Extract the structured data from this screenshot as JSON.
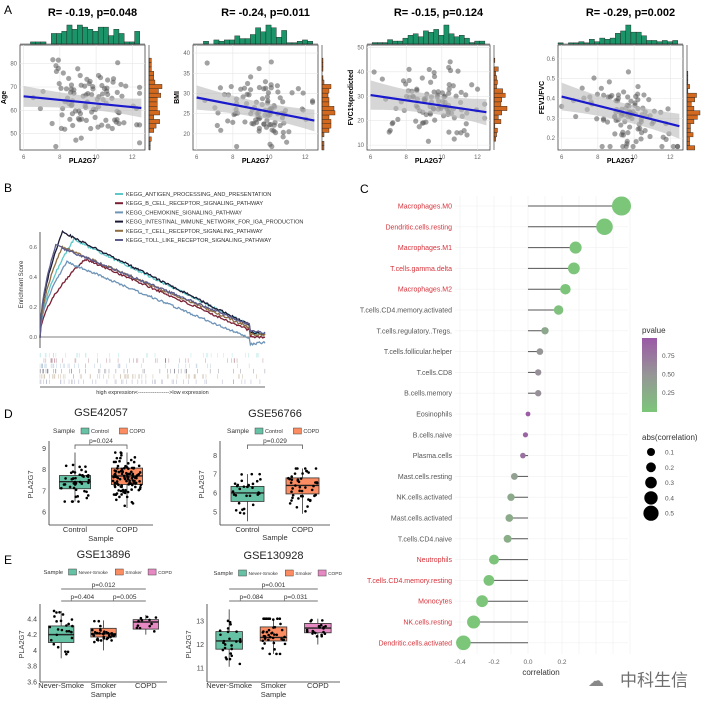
{
  "panel_labels": {
    "A": "A",
    "B": "B",
    "C": "C",
    "D": "D",
    "E": "E"
  },
  "watermark": "中科生信",
  "chart_data": [
    {
      "id": "A1",
      "type": "scatter",
      "title": "R= -0.19, p=0.048",
      "xlabel": "PLA2G7",
      "ylabel": "Age",
      "xticks": [
        6,
        8,
        10,
        12
      ],
      "yticks": [
        50,
        60,
        70,
        80
      ],
      "xlim": [
        5.8,
        12.7
      ],
      "ylim": [
        43,
        88
      ],
      "fit": [
        [
          6,
          66
        ],
        [
          12.5,
          61
        ]
      ],
      "ci_halfwidth": 4.5
    },
    {
      "id": "A2",
      "type": "scatter",
      "title": "R= -0.24, p=0.011",
      "xlabel": "PLA2G7",
      "ylabel": "BMI",
      "xticks": [
        6,
        8,
        10,
        12
      ],
      "yticks": [
        20,
        25,
        30,
        35,
        40
      ],
      "xlim": [
        5.8,
        12.7
      ],
      "ylim": [
        16,
        42
      ],
      "fit": [
        [
          6,
          29
        ],
        [
          12.5,
          23.3
        ]
      ],
      "ci_halfwidth": 3
    },
    {
      "id": "A3",
      "type": "scatter",
      "title": "R= -0.15, p=0.124",
      "xlabel": "PLA2G7",
      "ylabel": "FVC1%predicted",
      "xticks": [
        6,
        8,
        10,
        12
      ],
      "yticks": [
        10,
        20,
        30,
        40,
        50
      ],
      "xlim": [
        5.8,
        12.7
      ],
      "ylim": [
        8,
        51
      ],
      "fit": [
        [
          6,
          30.5
        ],
        [
          12.5,
          23.5
        ]
      ],
      "ci_halfwidth": 6
    },
    {
      "id": "A4",
      "type": "scatter",
      "title": "R= -0.29, p=0.002",
      "xlabel": "PLA2G7",
      "ylabel": "FEV1/FVC",
      "xticks": [
        6,
        8,
        10,
        12
      ],
      "yticks": [
        0.2,
        0.3,
        0.4,
        0.5,
        0.6
      ],
      "xlim": [
        5.8,
        12.7
      ],
      "ylim": [
        0.14,
        0.67
      ],
      "fit": [
        [
          6,
          0.41
        ],
        [
          12.5,
          0.26
        ]
      ],
      "ci_halfwidth": 0.07
    },
    {
      "id": "B",
      "type": "line",
      "ylabel": "Enrichment Score",
      "xlabel": "high expression<----------------->low expression",
      "yticks": [
        0.0,
        0.2,
        0.4,
        0.6
      ],
      "ylim": [
        -0.1,
        0.72
      ],
      "series": [
        {
          "name": "KEGG_ANTIGEN_PROCESSING_AND_PRESENTATION",
          "color": "#5fc9c9",
          "peak": 0.65,
          "peak_at": 0.15,
          "end": 0.03
        },
        {
          "name": "KEGG_B_CELL_RECEPTOR_SIGNALING_PATHWAY",
          "color": "#7a1f33",
          "peak": 0.52,
          "peak_at": 0.2,
          "end": 0.0
        },
        {
          "name": "KEGG_CHEMOKINE_SIGNALING_PATHWAY",
          "color": "#6e94b8",
          "peak": 0.5,
          "peak_at": 0.12,
          "end": -0.05
        },
        {
          "name": "KEGG_INTESTINAL_IMMUNE_NETWORK_FOR_IGA_PRODUCTION",
          "color": "#1b1a35",
          "peak": 0.7,
          "peak_at": 0.1,
          "end": 0.03
        },
        {
          "name": "KEGG_T_CELL_RECEPTOR_SIGNALING_PATHWAY",
          "color": "#8f6d42",
          "peak": 0.6,
          "peak_at": 0.1,
          "end": 0.02
        },
        {
          "name": "KEGG_TOLL_LIKE_RECEPTOR_SIGNALING_PATHWAY",
          "color": "#5c5c8c",
          "peak": 0.61,
          "peak_at": 0.07,
          "end": 0.04
        }
      ]
    },
    {
      "id": "C",
      "type": "scatter",
      "xlabel": "correlation",
      "xticks": [
        -0.4,
        -0.2,
        0.0,
        0.2
      ],
      "xlim": [
        -0.42,
        0.6
      ],
      "legend_pvalue_title": "pvalue",
      "legend_pvalue_ticks": [
        "0.75",
        "0.50",
        "0.25"
      ],
      "legend_size_title": "abs(correlation)",
      "legend_size_ticks": [
        "0.1",
        "0.2",
        "0.3",
        "0.4",
        "0.5"
      ],
      "highlight_color": "#d6333b",
      "rows": [
        {
          "label": "Macrophages.M0",
          "corr": 0.55,
          "p": 0.0,
          "sig": true
        },
        {
          "label": "Dendritic.cells.resting",
          "corr": 0.45,
          "p": 0.0,
          "sig": true
        },
        {
          "label": "Macrophages.M1",
          "corr": 0.28,
          "p": 0.01,
          "sig": true
        },
        {
          "label": "T.cells.gamma.delta",
          "corr": 0.27,
          "p": 0.01,
          "sig": true
        },
        {
          "label": "Macrophages.M2",
          "corr": 0.22,
          "p": 0.02,
          "sig": true
        },
        {
          "label": "T.cells.CD4.memory.activated",
          "corr": 0.18,
          "p": 0.05,
          "sig": false
        },
        {
          "label": "T.cells.regulatory..Tregs.",
          "corr": 0.1,
          "p": 0.32,
          "sig": false
        },
        {
          "label": "T.cells.follicular.helper",
          "corr": 0.07,
          "p": 0.5,
          "sig": false
        },
        {
          "label": "T.cells.CD8",
          "corr": 0.06,
          "p": 0.55,
          "sig": false
        },
        {
          "label": "B.cells.memory",
          "corr": 0.06,
          "p": 0.55,
          "sig": false
        },
        {
          "label": "Eosinophils",
          "corr": 0.0,
          "p": 0.98,
          "sig": false
        },
        {
          "label": "B.cells.naive",
          "corr": -0.015,
          "p": 0.9,
          "sig": false
        },
        {
          "label": "Plasma.cells",
          "corr": -0.03,
          "p": 0.8,
          "sig": false
        },
        {
          "label": "Mast.cells.resting",
          "corr": -0.08,
          "p": 0.4,
          "sig": false
        },
        {
          "label": "NK.cells.activated",
          "corr": -0.1,
          "p": 0.3,
          "sig": false
        },
        {
          "label": "Mast.cells.activated",
          "corr": -0.11,
          "p": 0.28,
          "sig": false
        },
        {
          "label": "T.cells.CD4.naive",
          "corr": -0.12,
          "p": 0.25,
          "sig": false
        },
        {
          "label": "Neutrophils",
          "corr": -0.2,
          "p": 0.03,
          "sig": true
        },
        {
          "label": "T.cells.CD4.memory.resting",
          "corr": -0.23,
          "p": 0.02,
          "sig": true
        },
        {
          "label": "Monocytes",
          "corr": -0.27,
          "p": 0.01,
          "sig": true
        },
        {
          "label": "NK.cells.resting",
          "corr": -0.32,
          "p": 0.0,
          "sig": true
        },
        {
          "label": "Dendritic.cells.activated",
          "corr": -0.38,
          "p": 0.0,
          "sig": true
        }
      ]
    },
    {
      "id": "D1",
      "type": "box",
      "title": "GSE42057",
      "legend_title": "Sample",
      "ylabel": "PLA2G7",
      "xlabel": "Sample",
      "yticks": [
        6,
        7,
        8,
        9
      ],
      "ylim": [
        5.4,
        9.2
      ],
      "groups": [
        {
          "name": "Control",
          "color": "#66c2a5",
          "q1": 7.1,
          "median": 7.43,
          "q3": 7.72,
          "lo": 6.5,
          "hi": 8.8,
          "n": 45
        },
        {
          "name": "COPD",
          "color": "#fc8d62",
          "q1": 7.3,
          "median": 7.7,
          "q3": 8.07,
          "lo": 6.2,
          "hi": 8.8,
          "n": 110
        }
      ],
      "comparisons": [
        {
          "a": 0,
          "b": 1,
          "label": "p=0.024"
        }
      ]
    },
    {
      "id": "D2",
      "type": "box",
      "title": "GSE56766",
      "legend_title": "Sample",
      "ylabel": "PLA2G7",
      "xlabel": "Sample",
      "yticks": [
        5,
        6,
        7,
        8
      ],
      "ylim": [
        4.3,
        8.6
      ],
      "groups": [
        {
          "name": "Control",
          "color": "#66c2a5",
          "q1": 5.55,
          "median": 6.0,
          "q3": 6.35,
          "lo": 4.5,
          "hi": 7.0,
          "n": 30
        },
        {
          "name": "COPD",
          "color": "#fc8d62",
          "q1": 5.95,
          "median": 6.4,
          "q3": 6.8,
          "lo": 4.9,
          "hi": 7.3,
          "n": 45
        }
      ],
      "comparisons": [
        {
          "a": 0,
          "b": 1,
          "label": "p=0.029"
        }
      ]
    },
    {
      "id": "E1",
      "type": "box",
      "title": "GSE13896",
      "legend_title": "Sample",
      "ylabel": "PLA2G7",
      "xlabel": "Sample",
      "yticks": [
        3.6,
        3.8,
        4.0,
        4.2,
        4.4
      ],
      "ylim": [
        3.6,
        4.55
      ],
      "groups": [
        {
          "name": "Never-Smoke",
          "color": "#66c2a5",
          "q1": 4.1,
          "median": 4.2,
          "q3": 4.31,
          "lo": 3.9,
          "hi": 4.5,
          "n": 25
        },
        {
          "name": "Smoker",
          "color": "#fc8d62",
          "q1": 4.17,
          "median": 4.21,
          "q3": 4.28,
          "lo": 4.0,
          "hi": 4.38,
          "n": 35
        },
        {
          "name": "COPD",
          "color": "#e78ac3",
          "q1": 4.27,
          "median": 4.36,
          "q3": 4.39,
          "lo": 4.2,
          "hi": 4.45,
          "n": 12
        }
      ],
      "comparisons": [
        {
          "a": 0,
          "b": 1,
          "label": "p=0.404"
        },
        {
          "a": 1,
          "b": 2,
          "label": "p=0.005"
        },
        {
          "a": 0,
          "b": 2,
          "label": "p=0.012"
        }
      ]
    },
    {
      "id": "E2",
      "type": "box",
      "title": "GSE130928",
      "legend_title": "Sample",
      "ylabel": "PLA2G7",
      "xlabel": "Sample",
      "yticks": [
        11,
        12,
        13
      ],
      "ylim": [
        10.4,
        13.6
      ],
      "groups": [
        {
          "name": "Never-Smoke",
          "color": "#66c2a5",
          "q1": 11.8,
          "median": 12.15,
          "q3": 12.55,
          "lo": 11.05,
          "hi": 13.5,
          "n": 25
        },
        {
          "name": "Smoker",
          "color": "#fc8d62",
          "q1": 12.15,
          "median": 12.3,
          "q3": 12.75,
          "lo": 11.6,
          "hi": 13.1,
          "n": 40
        },
        {
          "name": "COPD",
          "color": "#e78ac3",
          "q1": 12.5,
          "median": 12.7,
          "q3": 12.9,
          "lo": 12.0,
          "hi": 13.1,
          "n": 20
        }
      ],
      "comparisons": [
        {
          "a": 0,
          "b": 1,
          "label": "p=0.084"
        },
        {
          "a": 1,
          "b": 2,
          "label": "p=0.031"
        },
        {
          "a": 0,
          "b": 2,
          "label": "p=0.001"
        }
      ]
    }
  ]
}
